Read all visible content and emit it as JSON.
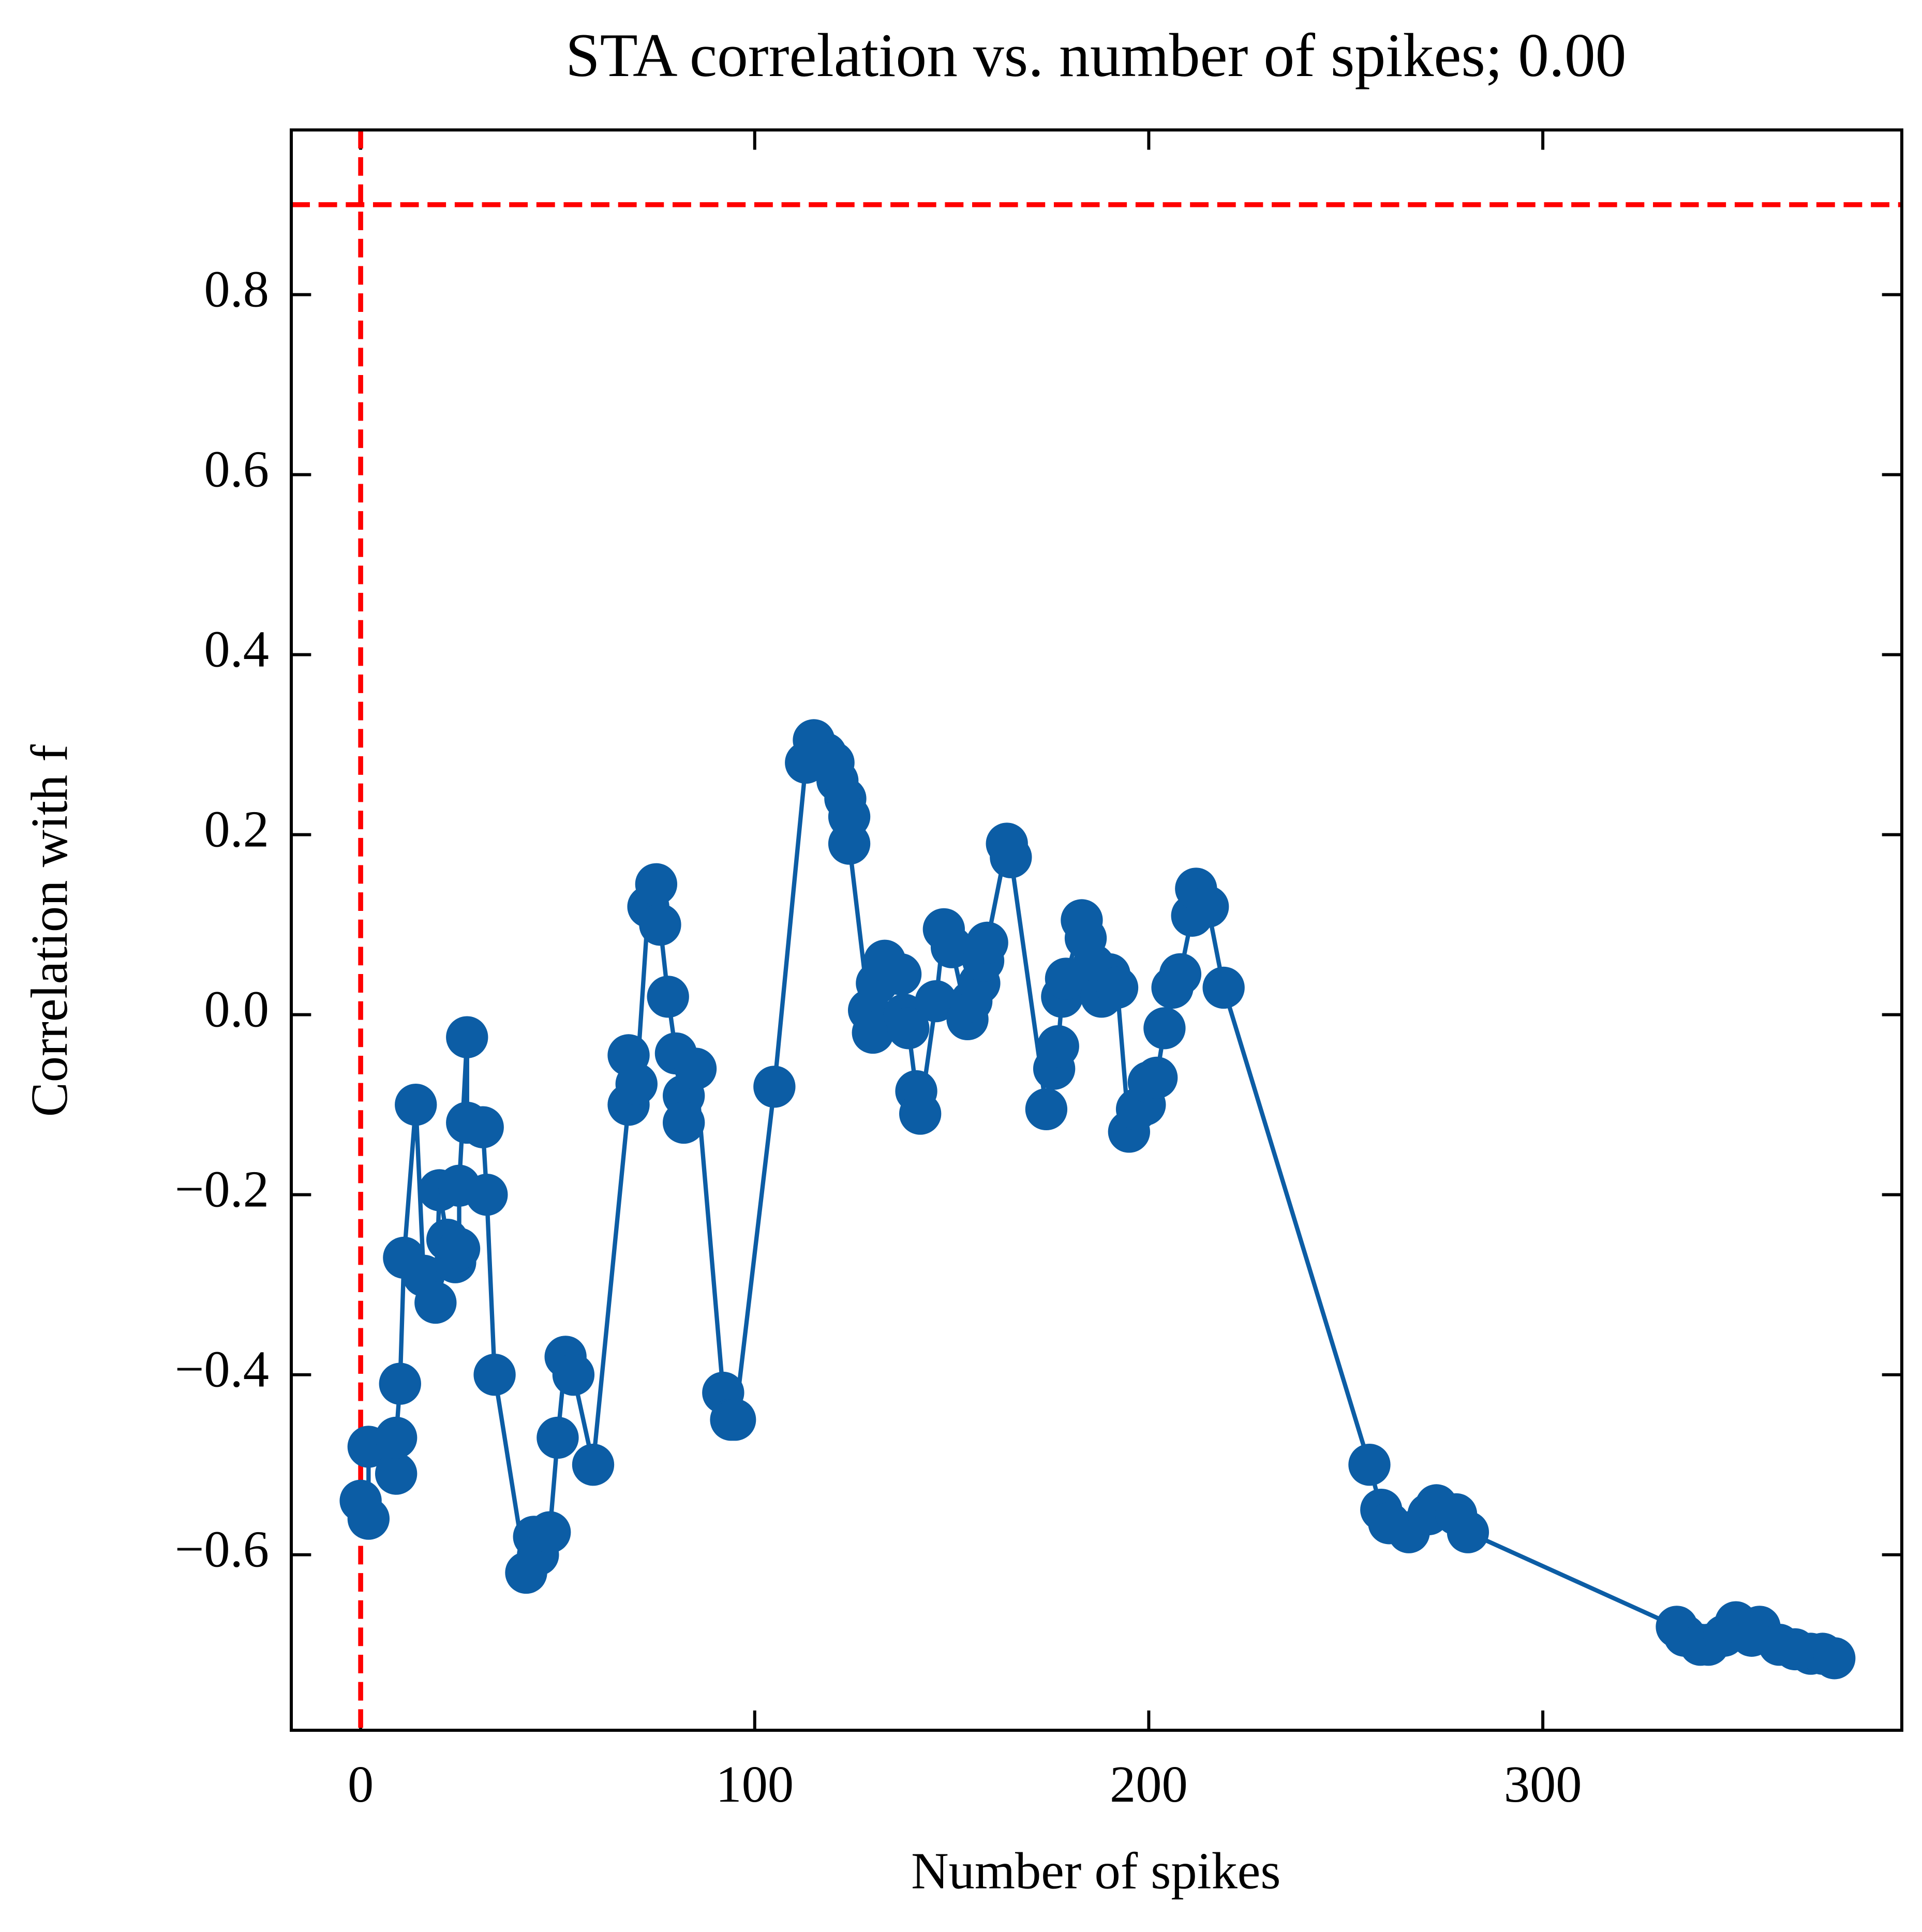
{
  "chart_data": {
    "type": "line",
    "title": "STA correlation vs. number of spikes; 0.00",
    "x_label": "Number of spikes",
    "y_label": "Correlation with f",
    "xlim": [
      -17.6,
      391.1
    ],
    "ylim": [
      -0.795,
      0.983
    ],
    "xticks": [
      0,
      100,
      200,
      300
    ],
    "yticks": [
      {
        "value": -0.6,
        "label": "−0.6"
      },
      {
        "value": -0.4,
        "label": "−0.4"
      },
      {
        "value": -0.2,
        "label": "−0.2"
      },
      {
        "value": 0,
        "label": "0.0"
      },
      0.2,
      0.4,
      0.6,
      0.8
    ],
    "reference_lines": {
      "x": 0,
      "y": 0.9,
      "color": "#ff0000"
    },
    "series": [
      {
        "color": "#0c5da5",
        "x": [
          0,
          2,
          2,
          9,
          9,
          10,
          11,
          14,
          16,
          19,
          20,
          22,
          24,
          25,
          25,
          27,
          27,
          31,
          32,
          34,
          42,
          44,
          45,
          48,
          50,
          52,
          54,
          59,
          68,
          68,
          70,
          73,
          75,
          76,
          78,
          80,
          82,
          82,
          85,
          92,
          94,
          95,
          105,
          113,
          115,
          118,
          120,
          121,
          123,
          124,
          124,
          129,
          130,
          131,
          133,
          137,
          138,
          139,
          141,
          142,
          146,
          148,
          150,
          154,
          155,
          157,
          158,
          159,
          164,
          165,
          174,
          176,
          177,
          178,
          179,
          183,
          184,
          186,
          188,
          190,
          192,
          195,
          197,
          199,
          200,
          202,
          204,
          206,
          208,
          211,
          212,
          215,
          219,
          256,
          259,
          261,
          266,
          271,
          273,
          278,
          281,
          334,
          336,
          340,
          342,
          346,
          349,
          353,
          355,
          360,
          364,
          368,
          371,
          374
        ],
        "values": [
          -0.54,
          -0.56,
          -0.48,
          -0.51,
          -0.47,
          -0.41,
          -0.27,
          -0.1,
          -0.29,
          -0.32,
          -0.195,
          -0.25,
          -0.275,
          -0.26,
          -0.19,
          -0.025,
          -0.12,
          -0.125,
          -0.2,
          -0.4,
          -0.62,
          -0.58,
          -0.6,
          -0.575,
          -0.47,
          -0.38,
          -0.4,
          -0.5,
          -0.1,
          -0.045,
          -0.077,
          0.12,
          0.145,
          0.1,
          0.02,
          -0.043,
          -0.09,
          -0.12,
          -0.06,
          -0.42,
          -0.45,
          -0.45,
          -0.08,
          0.28,
          0.305,
          0.29,
          0.28,
          0.26,
          0.24,
          0.22,
          0.19,
          0.005,
          -0.02,
          0.035,
          0.06,
          0.045,
          0,
          -0.015,
          -0.085,
          -0.11,
          0.015,
          0.095,
          0.075,
          -0.005,
          0.015,
          0.035,
          0.06,
          0.08,
          0.19,
          0.175,
          -0.105,
          -0.06,
          -0.035,
          0.02,
          0.04,
          0.105,
          0.085,
          0.055,
          0.02,
          0.045,
          0.03,
          -0.13,
          -0.105,
          -0.1,
          -0.075,
          -0.07,
          -0.015,
          0.03,
          0.045,
          0.11,
          0.14,
          0.12,
          0.03,
          -0.5,
          -0.55,
          -0.565,
          -0.575,
          -0.555,
          -0.545,
          -0.555,
          -0.575,
          -0.68,
          -0.69,
          -0.7,
          -0.7,
          -0.69,
          -0.675,
          -0.69,
          -0.68,
          -0.7,
          -0.705,
          -0.71,
          -0.71,
          -0.715
        ]
      }
    ]
  }
}
